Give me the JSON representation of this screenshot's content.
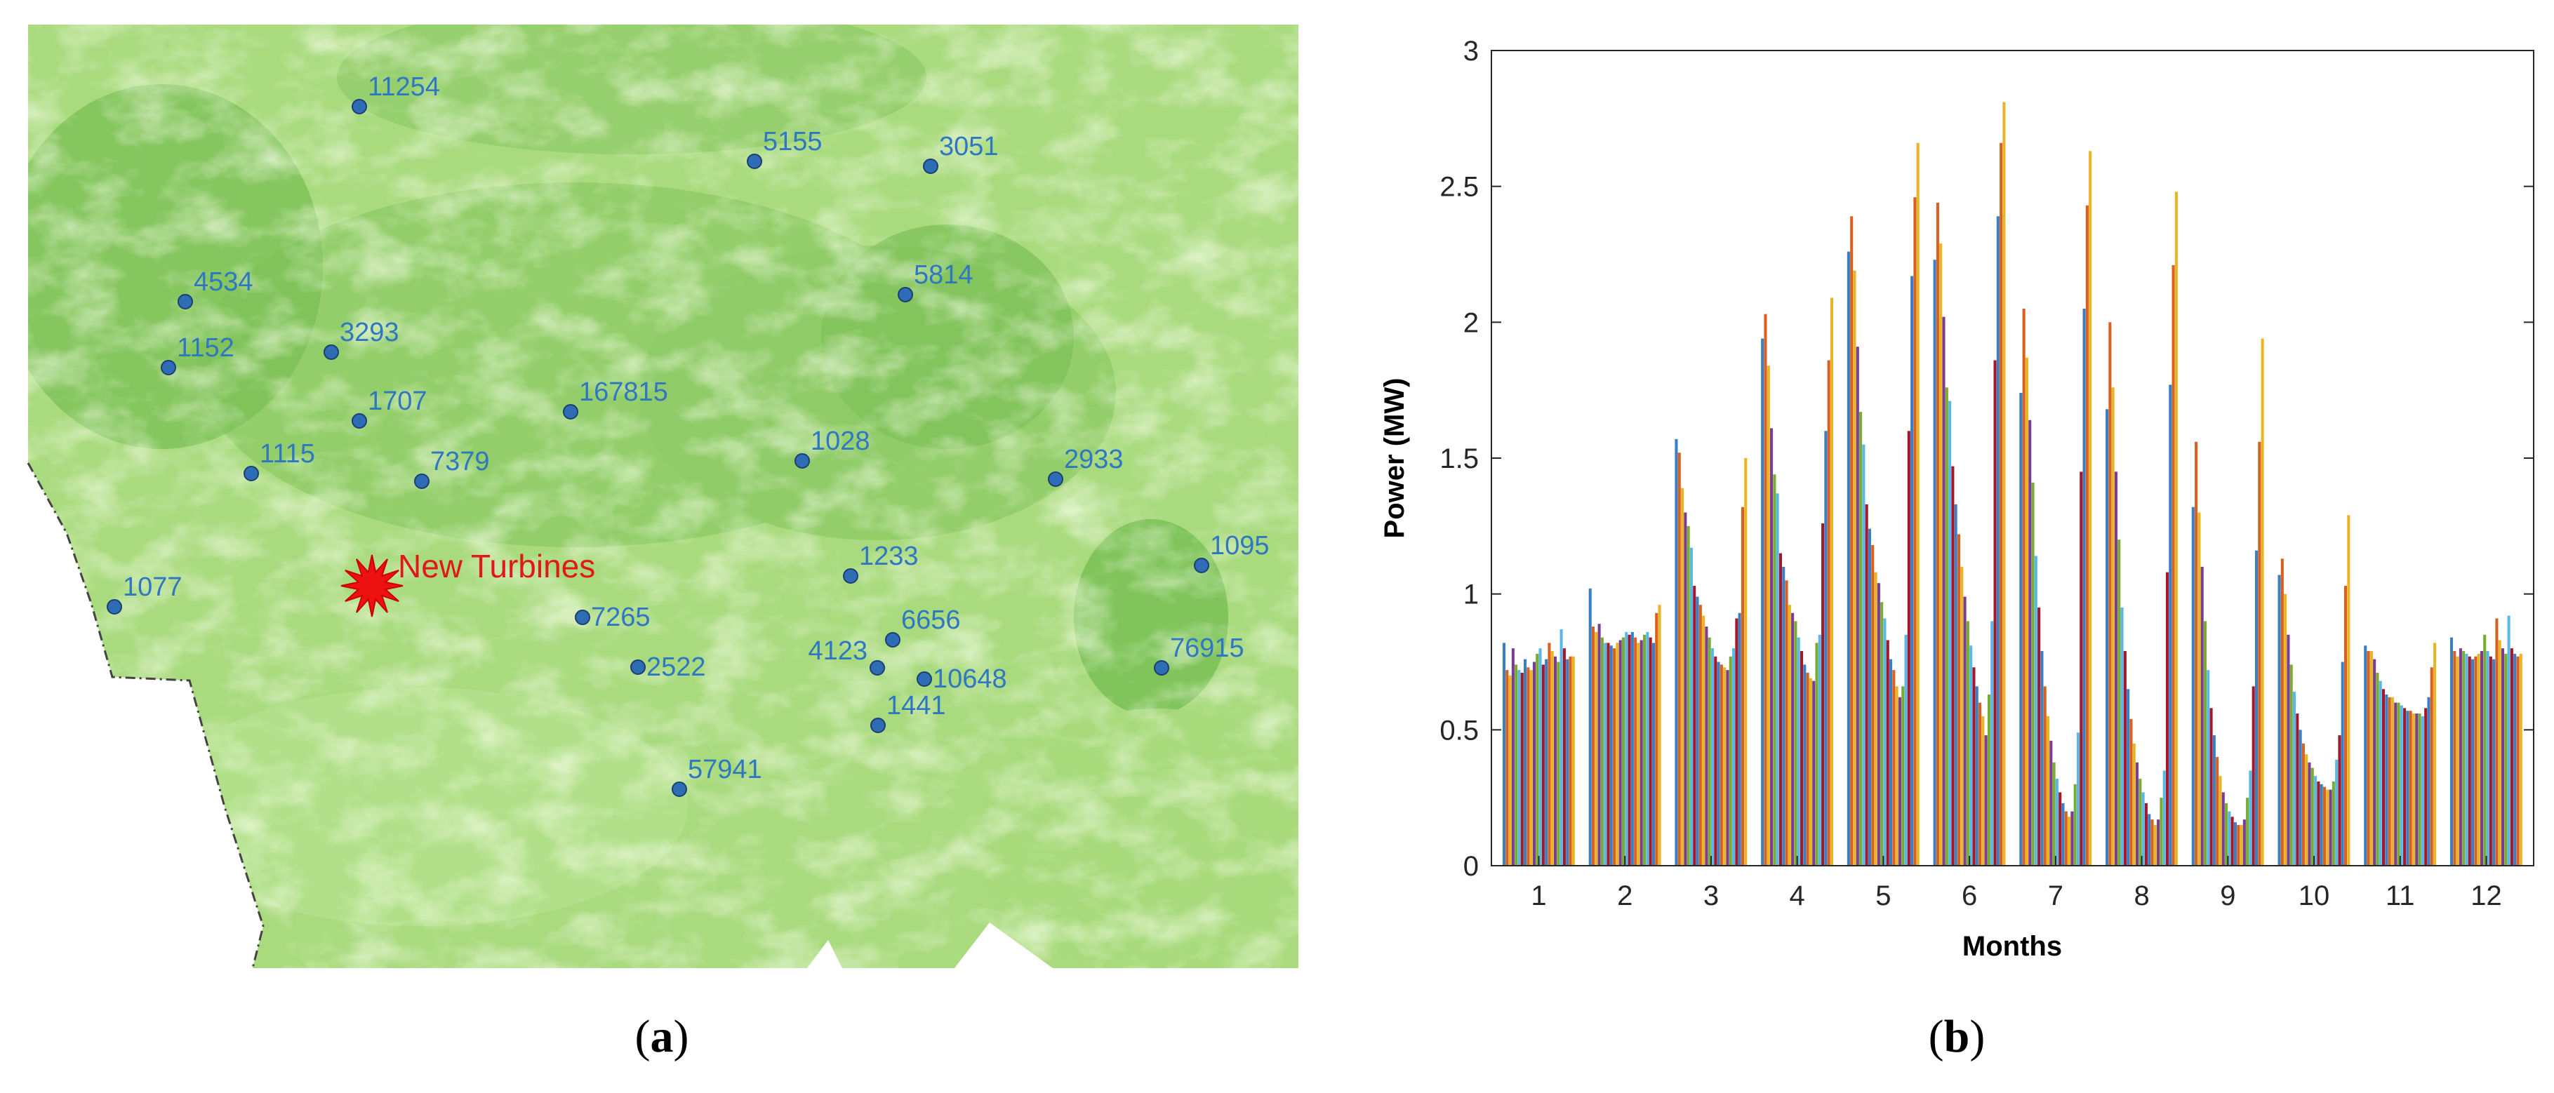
{
  "panel_a": {
    "caption_letter": "a",
    "marker_label": "New Turbines",
    "colors": {
      "land_light": "#b4e08a",
      "land_mid": "#96d06a",
      "land_dark": "#6cbb4a",
      "station_fill": "#2e6db5",
      "station_label": "#2f77c0",
      "marker": "#ee1111"
    },
    "stations": [
      {
        "label": "11254"
      },
      {
        "label": "5155"
      },
      {
        "label": "3051"
      },
      {
        "label": "4534"
      },
      {
        "label": "5814"
      },
      {
        "label": "3293"
      },
      {
        "label": "1152"
      },
      {
        "label": "1707"
      },
      {
        "label": "167815"
      },
      {
        "label": "1115"
      },
      {
        "label": "7379"
      },
      {
        "label": "1028"
      },
      {
        "label": "2933"
      },
      {
        "label": "1233"
      },
      {
        "label": "1095"
      },
      {
        "label": "1077"
      },
      {
        "label": "7265"
      },
      {
        "label": "6656"
      },
      {
        "label": "4123"
      },
      {
        "label": "10648"
      },
      {
        "label": "2522"
      },
      {
        "label": "76915"
      },
      {
        "label": "1441"
      },
      {
        "label": "57941"
      }
    ]
  },
  "panel_b": {
    "caption_letter": "b",
    "chart_data": {
      "type": "bar",
      "xlabel": "Months",
      "ylabel": "Power (MW)",
      "ylim": [
        0,
        3
      ],
      "yticks": [
        "0",
        "0.5",
        "1",
        "1.5",
        "2",
        "2.5",
        "3"
      ],
      "categories": [
        "1",
        "2",
        "3",
        "4",
        "5",
        "6",
        "7",
        "8",
        "9",
        "10",
        "11",
        "12"
      ],
      "grid": false,
      "bars_per_month": 24,
      "colors": [
        "#3a7fc4",
        "#d9601e",
        "#e9b525",
        "#7b3d94",
        "#78ac33",
        "#5ab8e6",
        "#a3182a"
      ],
      "months": [
        {
          "month": "1",
          "values": [
            0.82,
            0.72,
            0.7,
            0.8,
            0.74,
            0.72,
            0.71,
            0.76,
            0.73,
            0.72,
            0.75,
            0.78,
            0.8,
            0.74,
            0.76,
            0.82,
            0.79,
            0.77,
            0.75,
            0.87,
            0.8,
            0.76,
            0.77,
            0.77
          ]
        },
        {
          "month": "2",
          "values": [
            1.02,
            0.88,
            0.86,
            0.89,
            0.84,
            0.82,
            0.82,
            0.81,
            0.8,
            0.82,
            0.83,
            0.84,
            0.86,
            0.85,
            0.86,
            0.84,
            0.82,
            0.83,
            0.85,
            0.86,
            0.84,
            0.82,
            0.93,
            0.96
          ]
        },
        {
          "month": "3",
          "values": [
            1.57,
            1.52,
            1.39,
            1.3,
            1.25,
            1.17,
            1.03,
            0.99,
            0.96,
            0.92,
            0.88,
            0.84,
            0.8,
            0.77,
            0.75,
            0.74,
            0.73,
            0.72,
            0.77,
            0.8,
            0.91,
            0.93,
            1.32,
            1.5
          ]
        },
        {
          "month": "4",
          "values": [
            1.94,
            2.03,
            1.84,
            1.61,
            1.44,
            1.37,
            1.15,
            1.1,
            1.05,
            0.96,
            0.93,
            0.9,
            0.84,
            0.79,
            0.74,
            0.71,
            0.69,
            0.68,
            0.82,
            0.85,
            1.26,
            1.6,
            1.86,
            2.09
          ]
        },
        {
          "month": "5",
          "values": [
            2.26,
            2.39,
            2.19,
            1.91,
            1.67,
            1.55,
            1.33,
            1.24,
            1.18,
            1.08,
            1.04,
            0.97,
            0.91,
            0.83,
            0.76,
            0.72,
            0.66,
            0.62,
            0.66,
            0.85,
            1.6,
            2.17,
            2.46,
            2.66
          ]
        },
        {
          "month": "6",
          "values": [
            2.23,
            2.44,
            2.29,
            2.02,
            1.76,
            1.71,
            1.47,
            1.33,
            1.22,
            1.1,
            0.99,
            0.9,
            0.81,
            0.73,
            0.66,
            0.6,
            0.55,
            0.48,
            0.63,
            0.9,
            1.86,
            2.39,
            2.66,
            2.81
          ]
        },
        {
          "month": "7",
          "values": [
            1.74,
            2.05,
            1.87,
            1.64,
            1.41,
            1.14,
            0.95,
            0.79,
            0.66,
            0.55,
            0.46,
            0.38,
            0.32,
            0.27,
            0.23,
            0.2,
            0.18,
            0.2,
            0.3,
            0.49,
            1.45,
            2.05,
            2.43,
            2.63
          ]
        },
        {
          "month": "8",
          "values": [
            1.68,
            2.0,
            1.76,
            1.45,
            1.2,
            0.95,
            0.79,
            0.65,
            0.54,
            0.45,
            0.38,
            0.32,
            0.27,
            0.23,
            0.19,
            0.17,
            0.15,
            0.17,
            0.25,
            0.35,
            1.08,
            1.77,
            2.21,
            2.48
          ]
        },
        {
          "month": "9",
          "values": [
            1.32,
            1.56,
            1.3,
            1.1,
            0.9,
            0.72,
            0.58,
            0.48,
            0.4,
            0.33,
            0.27,
            0.23,
            0.2,
            0.18,
            0.16,
            0.15,
            0.15,
            0.17,
            0.25,
            0.35,
            0.66,
            1.16,
            1.56,
            1.94
          ]
        },
        {
          "month": "10",
          "values": [
            1.07,
            1.13,
            1.0,
            0.85,
            0.74,
            0.64,
            0.56,
            0.5,
            0.45,
            0.41,
            0.38,
            0.36,
            0.33,
            0.31,
            0.3,
            0.29,
            0.28,
            0.28,
            0.31,
            0.39,
            0.48,
            0.75,
            1.03,
            1.29
          ]
        },
        {
          "month": "11",
          "values": [
            0.81,
            0.79,
            0.79,
            0.76,
            0.71,
            0.68,
            0.65,
            0.63,
            0.62,
            0.62,
            0.6,
            0.6,
            0.59,
            0.58,
            0.57,
            0.57,
            0.56,
            0.56,
            0.56,
            0.55,
            0.58,
            0.62,
            0.73,
            0.82
          ]
        },
        {
          "month": "12",
          "values": [
            0.84,
            0.79,
            0.77,
            0.8,
            0.79,
            0.78,
            0.77,
            0.76,
            0.77,
            0.78,
            0.79,
            0.85,
            0.79,
            0.77,
            0.76,
            0.91,
            0.83,
            0.8,
            0.78,
            0.92,
            0.8,
            0.78,
            0.77,
            0.78
          ]
        }
      ]
    }
  }
}
